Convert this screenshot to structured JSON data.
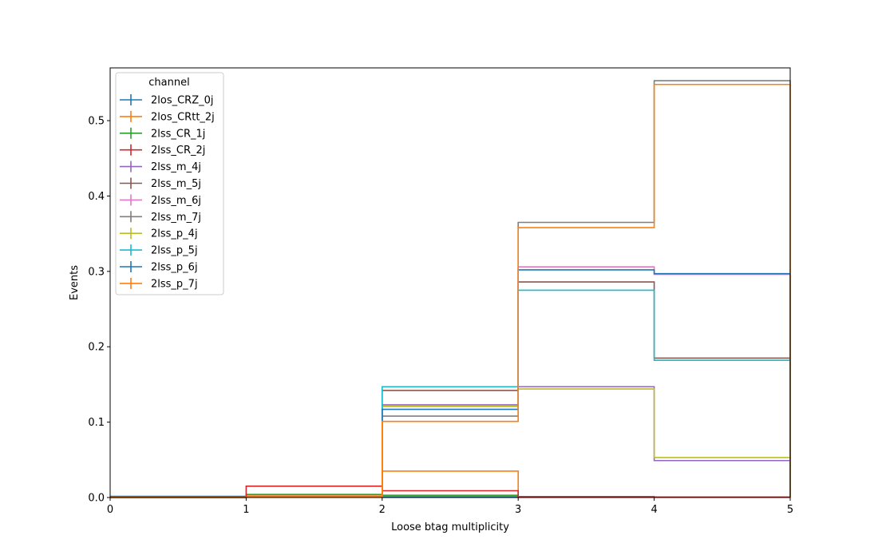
{
  "chart_data": {
    "type": "step",
    "xlabel": "Loose btag multiplicity",
    "ylabel": "Events",
    "xlim": [
      0,
      5
    ],
    "ylim": [
      0,
      0.57
    ],
    "xticks": [
      "0",
      "1",
      "2",
      "3",
      "4",
      "5"
    ],
    "yticks": [
      "0.0",
      "0.1",
      "0.2",
      "0.3",
      "0.4",
      "0.5"
    ],
    "bin_edges": [
      0,
      1,
      2,
      3,
      4,
      5
    ],
    "legend": {
      "title": "channel",
      "placement": "top-left"
    },
    "series": [
      {
        "name": "2los_CRZ_0j",
        "color": "#1f77b4",
        "values": [
          0.0015,
          0.0015,
          0.001,
          0.001,
          0.0005
        ]
      },
      {
        "name": "2los_CRtt_2j",
        "color": "#ff7f0e",
        "values": [
          0.0005,
          0.002,
          0.035,
          0.001,
          0.0005
        ]
      },
      {
        "name": "2lss_CR_1j",
        "color": "#2ca02c",
        "values": [
          0.0008,
          0.004,
          0.003,
          0.0005,
          0.0003
        ]
      },
      {
        "name": "2lss_CR_2j",
        "color": "#d62728",
        "values": [
          0.0005,
          0.015,
          0.009,
          0.001,
          0.0005
        ]
      },
      {
        "name": "2lss_m_4j",
        "color": "#9467bd",
        "values": [
          0.0002,
          0.0005,
          0.123,
          0.147,
          0.049
        ]
      },
      {
        "name": "2lss_m_5j",
        "color": "#8c564b",
        "values": [
          0.0002,
          0.0005,
          0.142,
          0.286,
          0.185
        ]
      },
      {
        "name": "2lss_m_6j",
        "color": "#e377c2",
        "values": [
          0.0002,
          0.0005,
          0.121,
          0.306,
          0.296
        ]
      },
      {
        "name": "2lss_m_7j",
        "color": "#7f7f7f",
        "values": [
          0.0002,
          0.0005,
          0.108,
          0.365,
          0.553
        ]
      },
      {
        "name": "2lss_p_4j",
        "color": "#bcbd22",
        "values": [
          0.0002,
          0.0005,
          0.121,
          0.144,
          0.053
        ]
      },
      {
        "name": "2lss_p_5j",
        "color": "#17becf",
        "values": [
          0.0002,
          0.0005,
          0.147,
          0.275,
          0.182
        ]
      },
      {
        "name": "2lss_p_6j",
        "color": "#1f77b4",
        "values": [
          0.0002,
          0.0005,
          0.117,
          0.302,
          0.297
        ]
      },
      {
        "name": "2lss_p_7j",
        "color": "#ff7f0e",
        "values": [
          0.0002,
          0.0005,
          0.101,
          0.358,
          0.548
        ]
      }
    ]
  }
}
